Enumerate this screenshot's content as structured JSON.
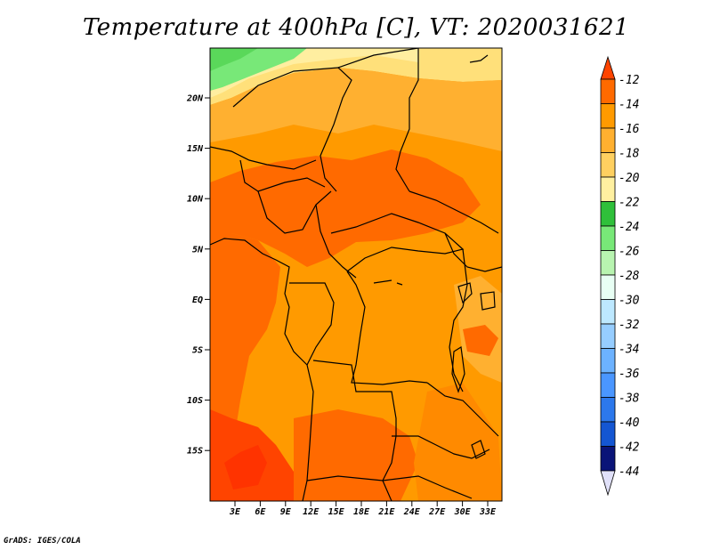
{
  "title": "Temperature at 400hPa [C], VT: 2020031621",
  "credit": "GrADS: IGES/COLA",
  "lat_ticks": [
    "20N",
    "15N",
    "10N",
    "5N",
    "EQ",
    "5S",
    "10S",
    "15S"
  ],
  "lon_ticks": [
    "3E",
    "6E",
    "9E",
    "12E",
    "15E",
    "18E",
    "21E",
    "24E",
    "27E",
    "30E",
    "33E"
  ],
  "colorbar": {
    "labels": [
      "-12",
      "-14",
      "-16",
      "-18",
      "-20",
      "-22",
      "-24",
      "-26",
      "-28",
      "-30",
      "-32",
      "-34",
      "-36",
      "-38",
      "-40",
      "-42",
      "-44"
    ],
    "colors": [
      "#ff4400",
      "#ff6a00",
      "#ff9a00",
      "#ffb030",
      "#ffd060",
      "#fff0a0",
      "#2fc03a",
      "#78e878",
      "#b8f4b0",
      "#e8fff4",
      "#bde8ff",
      "#96cdff",
      "#6cb2ff",
      "#4a96ff",
      "#2c78ec",
      "#1456d2",
      "#0a1478",
      "#e0e0f8"
    ]
  }
}
